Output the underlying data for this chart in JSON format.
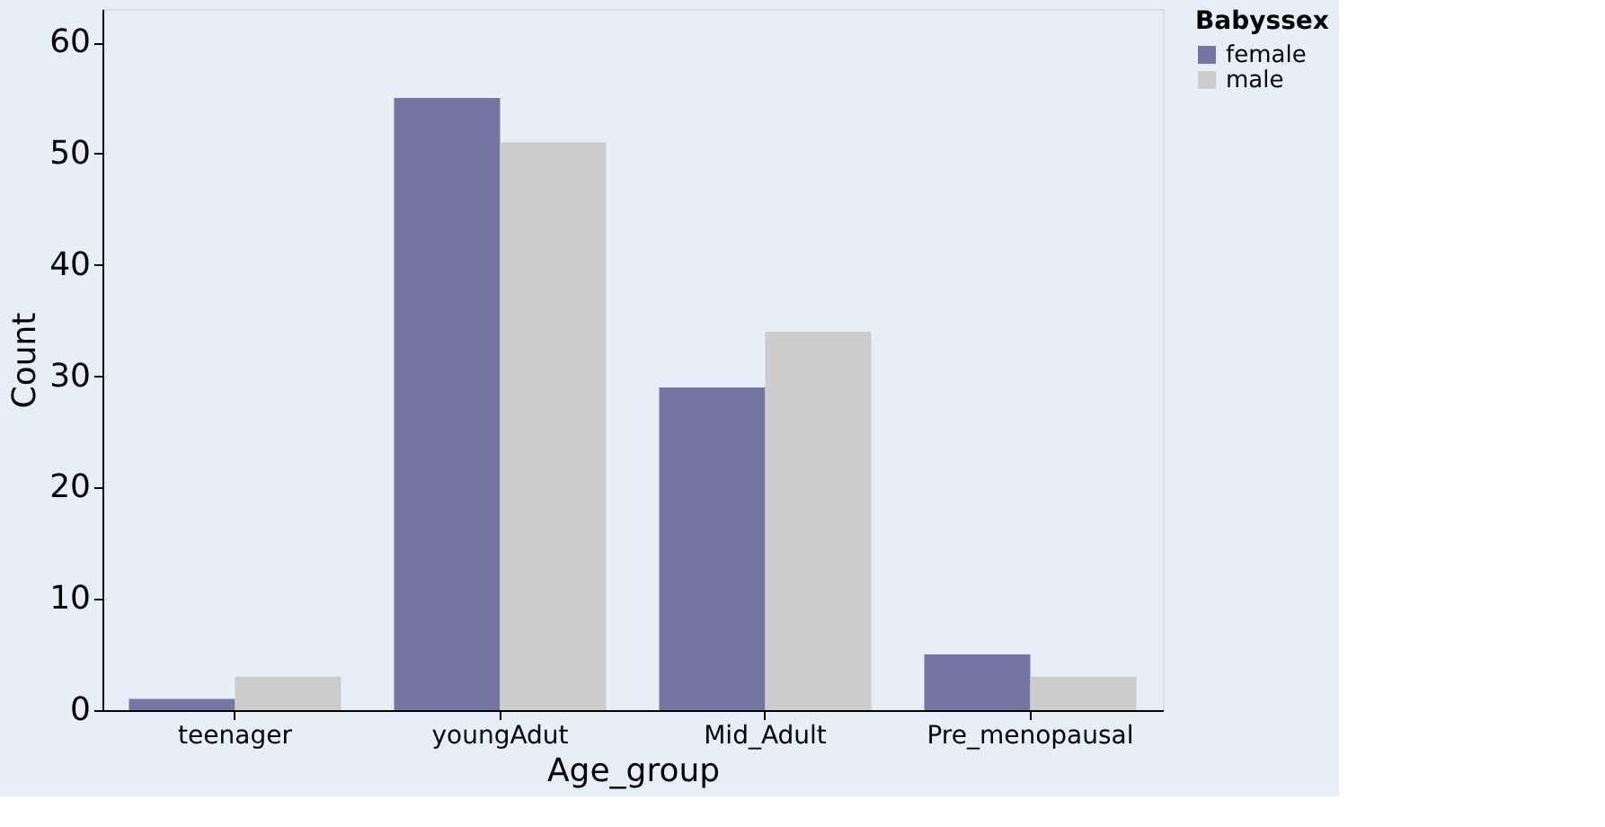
{
  "chart_data": {
    "type": "bar",
    "xlabel": "Age_group",
    "ylabel": "Count",
    "legend_title": "Babyssex",
    "categories": [
      "teenager",
      "youngAdut",
      "Mid_Adult",
      "Pre_menopausal"
    ],
    "series": [
      {
        "name": "female",
        "color": "#7575a1",
        "values": [
          1,
          55,
          29,
          5
        ]
      },
      {
        "name": "male",
        "color": "#cccccc",
        "values": [
          3,
          51,
          34,
          3
        ]
      }
    ],
    "ylim": [
      0,
      63
    ],
    "yticks": [
      0,
      10,
      20,
      30,
      40,
      50,
      60
    ],
    "grid": false,
    "legend": "top right"
  }
}
